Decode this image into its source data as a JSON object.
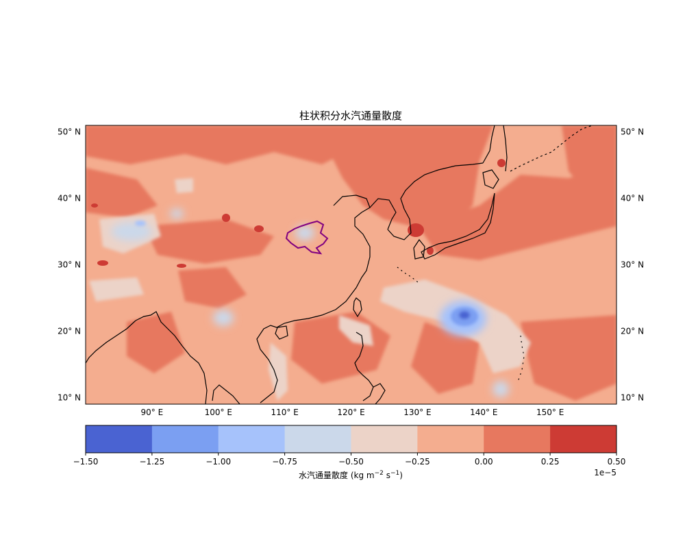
{
  "chart_data": {
    "type": "heatmap",
    "title": "柱状积分水汽通量散度",
    "map": {
      "lon_range": [
        80,
        160
      ],
      "lat_range": [
        9,
        51
      ],
      "x_ticks": [
        90,
        100,
        110,
        120,
        130,
        140,
        150
      ],
      "x_tick_labels": [
        "90° E",
        "100° E",
        "110° E",
        "120° E",
        "130° E",
        "140° E",
        "150° E"
      ],
      "y_ticks": [
        10,
        20,
        30,
        40,
        50
      ],
      "y_tick_labels": [
        "10° N",
        "20° N",
        "30° N",
        "40° N",
        "50° N"
      ],
      "grid": false,
      "features": [
        "coastlines",
        "region outline (purple)"
      ]
    },
    "colorbar": {
      "label": "水汽通量散度 (kg m⁻² s⁻¹)",
      "label_main": "水汽通量散度 (kg m",
      "label_exp1": "−2",
      "label_mid": " s",
      "label_exp2": "−1",
      "label_end": ")",
      "scale_label": "1e−5",
      "orientation": "horizontal",
      "levels": [
        -1.5,
        -1.25,
        -1.0,
        -0.75,
        -0.5,
        -0.25,
        0.0,
        0.25,
        0.5
      ],
      "level_labels": [
        "−1.50",
        "−1.25",
        "−1.00",
        "−0.75",
        "−0.50",
        "−0.25",
        "0.00",
        "0.25",
        "0.50"
      ],
      "colors": [
        "#4a63d2",
        "#7b9ff2",
        "#a6c2fb",
        "#cbd8ea",
        "#ecd3c8",
        "#f4ad8f",
        "#e7785f",
        "#cd3b34"
      ]
    },
    "dominant_range": [
      -0.25,
      0.25
    ],
    "features_described": [
      {
        "lon": 136.5,
        "lat": 22.5,
        "min_value": -1.25
      },
      {
        "lon": 113.5,
        "lat": 34.5,
        "min_value": -0.75
      },
      {
        "lon": 88.5,
        "lat": 35.5,
        "min_value": -0.75
      },
      {
        "lon": 100.5,
        "lat": 21.5,
        "min_value": -0.75
      },
      {
        "lon": 130,
        "lat": 35,
        "max_value": 0.5
      }
    ]
  }
}
